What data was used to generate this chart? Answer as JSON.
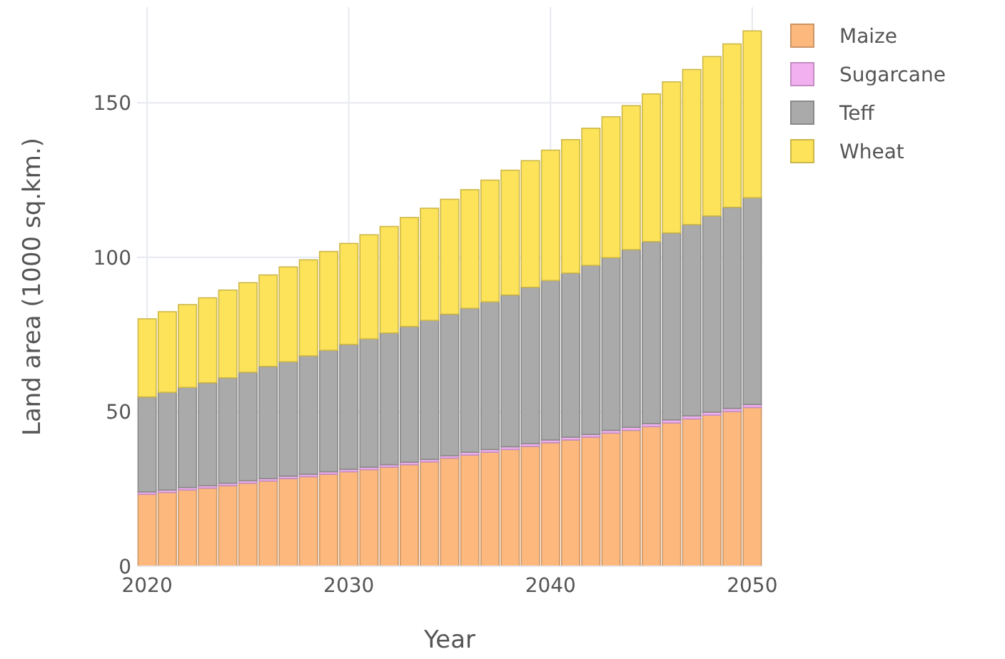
{
  "chart_data": {
    "type": "bar",
    "stacked": true,
    "xlabel": "Year",
    "ylabel": "Land area (1000 sq.km.)",
    "x": [
      2020,
      2021,
      2022,
      2023,
      2024,
      2025,
      2026,
      2027,
      2028,
      2029,
      2030,
      2031,
      2032,
      2033,
      2034,
      2035,
      2036,
      2037,
      2038,
      2039,
      2040,
      2041,
      2042,
      2043,
      2044,
      2045,
      2046,
      2047,
      2048,
      2049,
      2050
    ],
    "series": [
      {
        "name": "Maize",
        "color": "#fdb97d",
        "values": [
          23.3,
          23.9,
          24.7,
          25.3,
          26.1,
          26.9,
          27.6,
          28.4,
          29.0,
          29.8,
          30.6,
          31.3,
          32.1,
          32.9,
          33.8,
          35.0,
          36.0,
          36.9,
          37.8,
          38.8,
          40.0,
          40.9,
          41.8,
          43.1,
          44.0,
          45.2,
          46.4,
          47.7,
          48.9,
          50.1,
          51.4
        ]
      },
      {
        "name": "Sugarcane",
        "color": "#f2b0f0",
        "values": [
          0.8,
          0.8,
          0.8,
          0.8,
          0.8,
          0.8,
          0.8,
          0.8,
          0.8,
          0.8,
          0.8,
          0.8,
          0.8,
          0.8,
          0.8,
          0.8,
          0.9,
          0.9,
          0.9,
          0.9,
          0.9,
          0.9,
          0.9,
          0.9,
          1.0,
          1.0,
          1.0,
          1.0,
          1.0,
          1.0,
          1.0
        ]
      },
      {
        "name": "Teff",
        "color": "#aaaaaa",
        "values": [
          30.7,
          31.6,
          32.4,
          33.3,
          34.1,
          35.1,
          36.3,
          37.0,
          38.3,
          39.3,
          40.4,
          41.5,
          42.6,
          43.9,
          45.0,
          45.8,
          46.6,
          47.8,
          49.1,
          50.6,
          51.6,
          53.1,
          54.7,
          55.9,
          57.5,
          58.9,
          60.5,
          61.9,
          63.5,
          65.1,
          66.9
        ]
      },
      {
        "name": "Wheat",
        "color": "#fde35a",
        "values": [
          25.3,
          26.1,
          26.8,
          27.5,
          28.4,
          29.0,
          29.6,
          30.7,
          31.1,
          32.0,
          32.7,
          33.7,
          34.5,
          35.3,
          36.3,
          37.2,
          38.4,
          39.4,
          40.4,
          41.0,
          42.2,
          43.2,
          44.4,
          45.6,
          46.6,
          47.8,
          48.9,
          50.2,
          51.6,
          52.9,
          54.0
        ]
      }
    ],
    "xlim": [
      2019.5,
      2050.5
    ],
    "xticks": [
      2020,
      2030,
      2040,
      2050
    ],
    "ylim": [
      0,
      181
    ],
    "yticks": [
      0,
      50,
      100,
      150
    ],
    "grid": true,
    "legend": "top right"
  }
}
